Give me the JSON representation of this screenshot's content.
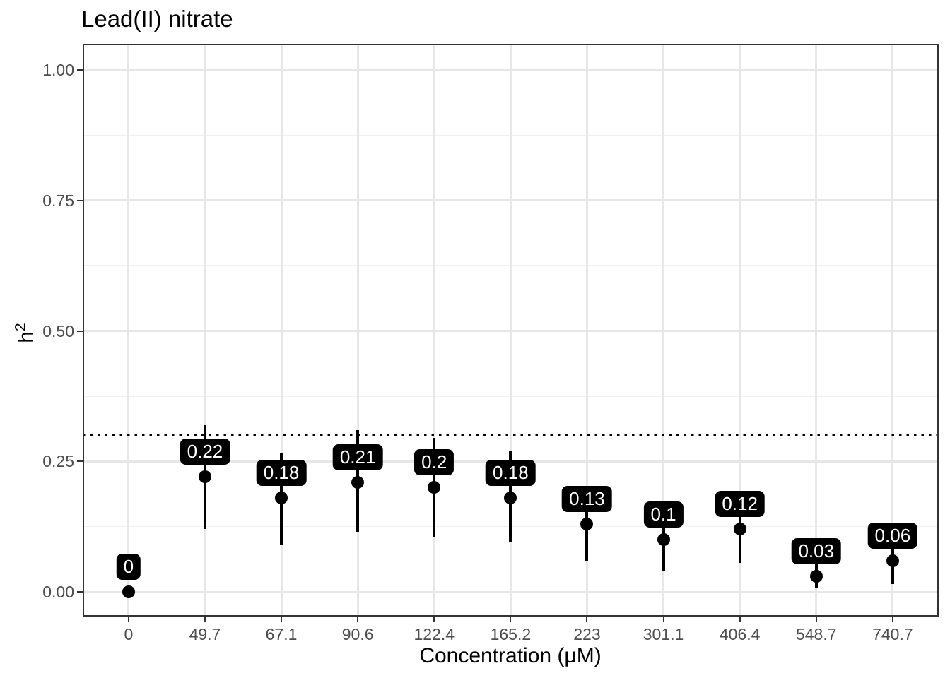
{
  "chart_data": {
    "type": "pointrange",
    "title": "Lead(II) nitrate",
    "xlabel": "Concentration (μM)",
    "ylabel": "h^2",
    "ylabel_base": "h",
    "ylabel_exponent": "2",
    "categories": [
      "0",
      "49.7",
      "67.1",
      "90.6",
      "122.4",
      "165.2",
      "223",
      "301.1",
      "406.4",
      "548.7",
      "740.7"
    ],
    "points": [
      {
        "x": "0",
        "y": 0.0,
        "label": "0",
        "lower": null,
        "upper": null
      },
      {
        "x": "49.7",
        "y": 0.22,
        "label": "0.22",
        "lower": 0.12,
        "upper": 0.32
      },
      {
        "x": "67.1",
        "y": 0.18,
        "label": "0.18",
        "lower": 0.09,
        "upper": 0.265
      },
      {
        "x": "90.6",
        "y": 0.21,
        "label": "0.21",
        "lower": 0.115,
        "upper": 0.31
      },
      {
        "x": "122.4",
        "y": 0.2,
        "label": "0.2",
        "lower": 0.105,
        "upper": 0.295
      },
      {
        "x": "165.2",
        "y": 0.18,
        "label": "0.18",
        "lower": 0.095,
        "upper": 0.27
      },
      {
        "x": "223",
        "y": 0.13,
        "label": "0.13",
        "lower": 0.06,
        "upper": 0.19
      },
      {
        "x": "301.1",
        "y": 0.1,
        "label": "0.1",
        "lower": 0.04,
        "upper": 0.155
      },
      {
        "x": "406.4",
        "y": 0.12,
        "label": "0.12",
        "lower": 0.055,
        "upper": 0.185
      },
      {
        "x": "548.7",
        "y": 0.03,
        "label": "0.03",
        "lower": 0.007,
        "upper": 0.08
      },
      {
        "x": "740.7",
        "y": 0.06,
        "label": "0.06",
        "lower": 0.015,
        "upper": 0.11
      }
    ],
    "y_axis": {
      "tick_labels": [
        "0.00",
        "0.25",
        "0.50",
        "0.75",
        "1.00"
      ],
      "tick_values": [
        0,
        0.25,
        0.5,
        0.75,
        1.0
      ],
      "minor_values": [
        0.125,
        0.375,
        0.625,
        0.875
      ],
      "range": [
        0,
        1
      ]
    },
    "reference_line": {
      "value": 0.3,
      "style": "dotted",
      "color": "#000000"
    },
    "legend": "none",
    "grid": {
      "major": true,
      "minor": true
    },
    "colors": {
      "point": "#000000",
      "error_bar": "#000000",
      "label_bg": "#000000",
      "label_text": "#ffffff",
      "grid_major": "#e7e7e7",
      "grid_minor": "#f0f0f0",
      "panel_border": "#333333",
      "axis_text": "#4d4d4d",
      "title_text": "#000000",
      "background": "#ffffff"
    }
  }
}
